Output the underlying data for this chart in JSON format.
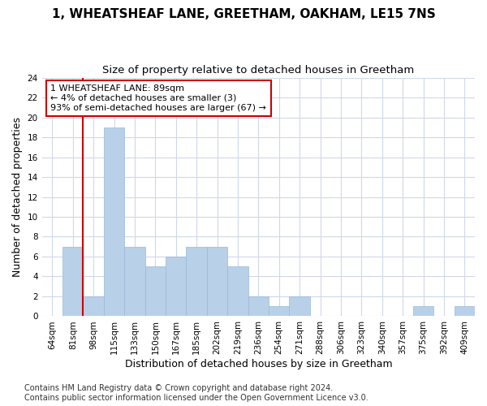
{
  "title": "1, WHEATSHEAF LANE, GREETHAM, OAKHAM, LE15 7NS",
  "subtitle": "Size of property relative to detached houses in Greetham",
  "xlabel": "Distribution of detached houses by size in Greetham",
  "ylabel": "Number of detached properties",
  "categories": [
    "64sqm",
    "81sqm",
    "98sqm",
    "115sqm",
    "133sqm",
    "150sqm",
    "167sqm",
    "185sqm",
    "202sqm",
    "219sqm",
    "236sqm",
    "254sqm",
    "271sqm",
    "288sqm",
    "306sqm",
    "323sqm",
    "340sqm",
    "357sqm",
    "375sqm",
    "392sqm",
    "409sqm"
  ],
  "values": [
    0,
    7,
    2,
    19,
    7,
    5,
    6,
    7,
    7,
    5,
    2,
    1,
    2,
    0,
    0,
    0,
    0,
    0,
    1,
    0,
    1
  ],
  "bar_color": "#b8d0e8",
  "bar_edge_color": "#9ab8d8",
  "highlight_line_color": "#cc0000",
  "highlight_bar_index": 1,
  "annotation_line1": "1 WHEATSHEAF LANE: 89sqm",
  "annotation_line2": "← 4% of detached houses are smaller (3)",
  "annotation_line3": "93% of semi-detached houses are larger (67) →",
  "annotation_box_color": "#ffffff",
  "annotation_box_edge": "#cc0000",
  "ylim": [
    0,
    24
  ],
  "yticks": [
    0,
    2,
    4,
    6,
    8,
    10,
    12,
    14,
    16,
    18,
    20,
    22,
    24
  ],
  "footer1": "Contains HM Land Registry data © Crown copyright and database right 2024.",
  "footer2": "Contains public sector information licensed under the Open Government Licence v3.0.",
  "bg_color": "#ffffff",
  "plot_bg_color": "#ffffff",
  "grid_color": "#d0d8e8",
  "title_fontsize": 11,
  "subtitle_fontsize": 9.5,
  "axis_label_fontsize": 9,
  "tick_fontsize": 7.5,
  "annotation_fontsize": 8,
  "footer_fontsize": 7
}
